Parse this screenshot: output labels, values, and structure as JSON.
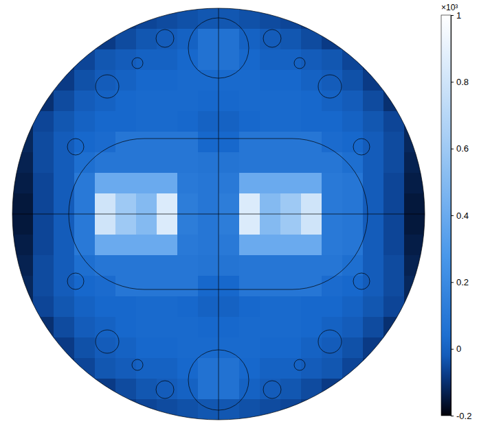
{
  "chart_data": {
    "type": "heatmap",
    "tick_labels": false,
    "cells": [
      [
        null,
        null,
        null,
        null,
        null,
        -0.08,
        -0.06,
        -0.05,
        -0.04,
        -0.03,
        -0.03,
        -0.04,
        -0.05,
        -0.06,
        -0.08,
        null,
        null,
        null,
        null,
        null
      ],
      [
        null,
        null,
        null,
        null,
        -0.08,
        -0.05,
        -0.03,
        -0.02,
        -0.01,
        0.06,
        0.06,
        -0.01,
        -0.02,
        -0.03,
        -0.05,
        -0.08,
        null,
        null,
        null,
        null
      ],
      [
        null,
        null,
        -0.1,
        -0.06,
        -0.03,
        -0.02,
        -0.01,
        -0.01,
        0.0,
        0.06,
        0.06,
        0.0,
        -0.01,
        -0.01,
        -0.02,
        -0.03,
        -0.06,
        -0.1,
        null,
        null
      ],
      [
        null,
        null,
        -0.08,
        -0.04,
        -0.02,
        -0.01,
        0.0,
        0.0,
        0.01,
        0.01,
        0.01,
        0.01,
        0.0,
        0.0,
        -0.01,
        -0.02,
        -0.04,
        -0.08,
        null,
        null
      ],
      [
        null,
        -0.1,
        -0.05,
        -0.02,
        -0.01,
        0.0,
        0.01,
        0.01,
        0.01,
        0.0,
        0.0,
        0.01,
        0.01,
        0.01,
        0.0,
        -0.01,
        -0.02,
        -0.05,
        -0.1,
        null
      ],
      [
        -0.12,
        -0.06,
        -0.03,
        -0.01,
        0.0,
        0.0,
        0.01,
        0.01,
        0.0,
        -0.01,
        -0.01,
        0.0,
        0.01,
        0.01,
        0.0,
        0.0,
        -0.01,
        -0.03,
        -0.06,
        -0.12
      ],
      [
        -0.12,
        -0.05,
        -0.02,
        0.0,
        0.02,
        0.08,
        0.08,
        0.08,
        0.08,
        0.0,
        0.0,
        0.08,
        0.08,
        0.08,
        0.08,
        0.02,
        0.0,
        -0.02,
        -0.05,
        -0.12
      ],
      [
        -0.13,
        -0.05,
        -0.02,
        0.04,
        0.08,
        0.08,
        0.08,
        0.08,
        0.08,
        0.07,
        0.07,
        0.08,
        0.08,
        0.08,
        0.08,
        0.08,
        0.04,
        -0.02,
        -0.05,
        -0.13
      ],
      [
        -0.14,
        -0.06,
        -0.02,
        0.1,
        0.4,
        0.4,
        0.4,
        0.4,
        0.1,
        0.08,
        0.1,
        0.4,
        0.4,
        0.4,
        0.4,
        0.1,
        0.08,
        -0.02,
        -0.06,
        -0.14
      ],
      [
        -0.15,
        -0.06,
        -0.02,
        0.1,
        0.8,
        0.6,
        0.5,
        0.85,
        0.12,
        0.08,
        0.12,
        0.85,
        0.5,
        0.6,
        0.8,
        0.1,
        0.08,
        -0.02,
        -0.06,
        -0.15
      ],
      [
        -0.15,
        -0.06,
        -0.02,
        0.1,
        0.8,
        0.6,
        0.5,
        0.85,
        0.12,
        0.08,
        0.12,
        0.85,
        0.5,
        0.6,
        0.8,
        0.1,
        0.08,
        -0.02,
        -0.06,
        -0.15
      ],
      [
        -0.14,
        -0.06,
        -0.02,
        0.1,
        0.4,
        0.4,
        0.4,
        0.4,
        0.1,
        0.08,
        0.1,
        0.4,
        0.4,
        0.4,
        0.4,
        0.1,
        0.08,
        -0.02,
        -0.06,
        -0.14
      ],
      [
        -0.13,
        -0.05,
        -0.02,
        0.04,
        0.08,
        0.08,
        0.08,
        0.08,
        0.08,
        0.07,
        0.07,
        0.08,
        0.08,
        0.08,
        0.08,
        0.08,
        0.04,
        -0.02,
        -0.05,
        -0.13
      ],
      [
        -0.12,
        -0.05,
        -0.02,
        0.0,
        0.02,
        0.08,
        0.08,
        0.08,
        0.08,
        0.0,
        0.0,
        0.08,
        0.08,
        0.08,
        0.08,
        0.02,
        0.0,
        -0.02,
        -0.05,
        -0.12
      ],
      [
        -0.12,
        -0.06,
        -0.03,
        -0.01,
        0.0,
        0.0,
        0.01,
        0.01,
        0.0,
        -0.01,
        -0.01,
        0.0,
        0.01,
        0.01,
        0.0,
        0.0,
        -0.01,
        -0.03,
        -0.06,
        -0.12
      ],
      [
        null,
        -0.1,
        -0.05,
        -0.02,
        -0.01,
        0.0,
        0.01,
        0.01,
        0.01,
        0.0,
        0.0,
        0.01,
        0.01,
        0.01,
        0.0,
        -0.01,
        -0.02,
        -0.05,
        -0.1,
        null
      ],
      [
        null,
        null,
        -0.08,
        -0.04,
        -0.02,
        -0.01,
        0.0,
        0.0,
        0.01,
        0.01,
        0.01,
        0.01,
        0.0,
        0.0,
        -0.01,
        -0.02,
        -0.04,
        -0.08,
        null,
        null
      ],
      [
        null,
        null,
        -0.1,
        -0.06,
        -0.03,
        -0.02,
        -0.01,
        -0.01,
        0.0,
        0.06,
        0.06,
        0.0,
        -0.01,
        -0.01,
        -0.02,
        -0.03,
        -0.06,
        -0.1,
        null,
        null
      ],
      [
        null,
        null,
        null,
        null,
        -0.08,
        -0.05,
        -0.03,
        -0.02,
        -0.01,
        0.06,
        0.06,
        -0.01,
        -0.02,
        -0.03,
        -0.05,
        -0.08,
        null,
        null,
        null,
        null
      ],
      [
        null,
        null,
        null,
        null,
        null,
        -0.08,
        -0.06,
        -0.05,
        -0.04,
        -0.03,
        -0.03,
        -0.04,
        -0.05,
        -0.06,
        -0.08,
        null,
        null,
        null,
        null,
        null
      ]
    ],
    "colorbar": {
      "range": [
        -0.2,
        1
      ],
      "ticks": [
        -0.2,
        0,
        0.2,
        0.4,
        0.6,
        0.8,
        1
      ],
      "multiplier": "×10³"
    }
  }
}
